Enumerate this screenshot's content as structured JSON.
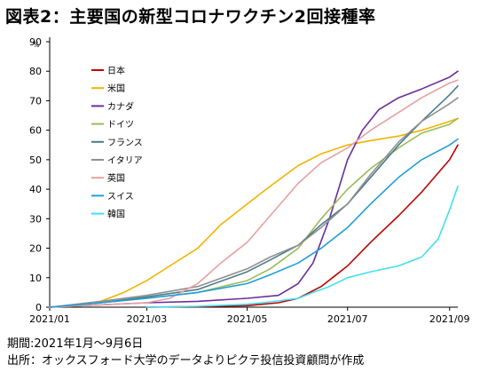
{
  "title": "図表2：主要国の新型コロナワクチン2回接種率",
  "footnotes": {
    "period": "期間:2021年1月～9月6日",
    "source": "出所：オックスフォード大学のデータよりピクテ投信投資顧問が作成"
  },
  "chart_data": {
    "type": "line",
    "unit": "%",
    "ylim": [
      0,
      90
    ],
    "yticks": [
      0,
      10,
      20,
      30,
      40,
      50,
      60,
      70,
      80,
      90
    ],
    "xlim": [
      "2021-01-01",
      "2021-09-06"
    ],
    "xticks": [
      "2021/01",
      "2021/03",
      "2021/05",
      "2021/07",
      "2021/09"
    ],
    "grid": false,
    "legend_position": "top-left",
    "series": [
      {
        "name": "日本",
        "color": "#c00000",
        "x": [
          "2021-03-01",
          "2021-04-01",
          "2021-05-01",
          "2021-05-20",
          "2021-06-01",
          "2021-06-15",
          "2021-07-01",
          "2021-07-15",
          "2021-08-01",
          "2021-08-15",
          "2021-09-01",
          "2021-09-06"
        ],
        "y": [
          0,
          0.2,
          0.5,
          1.5,
          3,
          7,
          14,
          22,
          31,
          39,
          50,
          55
        ]
      },
      {
        "name": "米国",
        "color": "#f0b400",
        "x": [
          "2021-01-01",
          "2021-01-15",
          "2021-02-01",
          "2021-02-15",
          "2021-03-01",
          "2021-03-15",
          "2021-04-01",
          "2021-04-15",
          "2021-05-01",
          "2021-05-15",
          "2021-06-01",
          "2021-06-15",
          "2021-07-01",
          "2021-07-15",
          "2021-08-01",
          "2021-08-15",
          "2021-09-01",
          "2021-09-06"
        ],
        "y": [
          0,
          0.5,
          2,
          5,
          9,
          14,
          20,
          28,
          35,
          41,
          48,
          52,
          55,
          56.5,
          58,
          60,
          63,
          64
        ]
      },
      {
        "name": "カナダ",
        "color": "#6a2e9a",
        "x": [
          "2021-01-01",
          "2021-03-01",
          "2021-04-01",
          "2021-05-01",
          "2021-05-20",
          "2021-06-01",
          "2021-06-10",
          "2021-06-20",
          "2021-07-01",
          "2021-07-10",
          "2021-07-20",
          "2021-08-01",
          "2021-08-15",
          "2021-09-01",
          "2021-09-06"
        ],
        "y": [
          0,
          1.5,
          2,
          3,
          4,
          8,
          15,
          30,
          50,
          60,
          67,
          71,
          74,
          78,
          80
        ]
      },
      {
        "name": "ドイツ",
        "color": "#9bbb59",
        "x": [
          "2021-01-01",
          "2021-02-01",
          "2021-03-01",
          "2021-04-01",
          "2021-05-01",
          "2021-05-15",
          "2021-06-01",
          "2021-06-15",
          "2021-07-01",
          "2021-07-15",
          "2021-08-01",
          "2021-08-15",
          "2021-09-01",
          "2021-09-06"
        ],
        "y": [
          0,
          1.5,
          3,
          5,
          9,
          13,
          20,
          30,
          40,
          47,
          54,
          59,
          62,
          64
        ]
      },
      {
        "name": "フランス",
        "color": "#4a7b8c",
        "x": [
          "2021-01-01",
          "2021-02-01",
          "2021-03-01",
          "2021-04-01",
          "2021-05-01",
          "2021-05-15",
          "2021-06-01",
          "2021-06-15",
          "2021-07-01",
          "2021-07-15",
          "2021-08-01",
          "2021-08-15",
          "2021-09-01",
          "2021-09-06"
        ],
        "y": [
          0,
          1.5,
          3.5,
          6,
          12,
          16,
          21,
          28,
          35,
          44,
          55,
          63,
          72,
          75
        ]
      },
      {
        "name": "イタリア",
        "color": "#909090",
        "x": [
          "2021-01-01",
          "2021-02-01",
          "2021-03-01",
          "2021-04-01",
          "2021-05-01",
          "2021-05-15",
          "2021-06-01",
          "2021-06-15",
          "2021-07-01",
          "2021-07-15",
          "2021-08-01",
          "2021-08-15",
          "2021-09-01",
          "2021-09-06"
        ],
        "y": [
          0,
          2,
          4,
          7,
          13,
          17,
          21,
          27,
          35,
          45,
          56,
          63,
          69,
          71
        ]
      },
      {
        "name": "英国",
        "color": "#e8a0a0",
        "x": [
          "2021-01-01",
          "2021-02-01",
          "2021-03-01",
          "2021-03-15",
          "2021-04-01",
          "2021-04-15",
          "2021-05-01",
          "2021-05-15",
          "2021-06-01",
          "2021-06-15",
          "2021-07-01",
          "2021-07-15",
          "2021-08-01",
          "2021-08-15",
          "2021-09-01",
          "2021-09-06"
        ],
        "y": [
          0,
          0.8,
          1.5,
          3,
          8,
          15,
          22,
          31,
          42,
          49,
          54,
          60,
          66,
          71,
          76,
          77
        ]
      },
      {
        "name": "スイス",
        "color": "#1f9ed8",
        "x": [
          "2021-01-01",
          "2021-02-01",
          "2021-03-01",
          "2021-04-01",
          "2021-05-01",
          "2021-05-15",
          "2021-06-01",
          "2021-06-15",
          "2021-07-01",
          "2021-07-15",
          "2021-08-01",
          "2021-08-15",
          "2021-09-01",
          "2021-09-06"
        ],
        "y": [
          0,
          1.5,
          3,
          5,
          8,
          11,
          15,
          20,
          27,
          35,
          44,
          50,
          55,
          57
        ]
      },
      {
        "name": "韓国",
        "color": "#40e0f0",
        "x": [
          "2021-03-01",
          "2021-04-01",
          "2021-05-01",
          "2021-05-15",
          "2021-06-01",
          "2021-06-10",
          "2021-06-20",
          "2021-07-01",
          "2021-07-15",
          "2021-08-01",
          "2021-08-15",
          "2021-08-25",
          "2021-09-01",
          "2021-09-06"
        ],
        "y": [
          0,
          0.3,
          1,
          1.8,
          3,
          5,
          7,
          10,
          12,
          14,
          17,
          23,
          33,
          41
        ]
      }
    ]
  }
}
